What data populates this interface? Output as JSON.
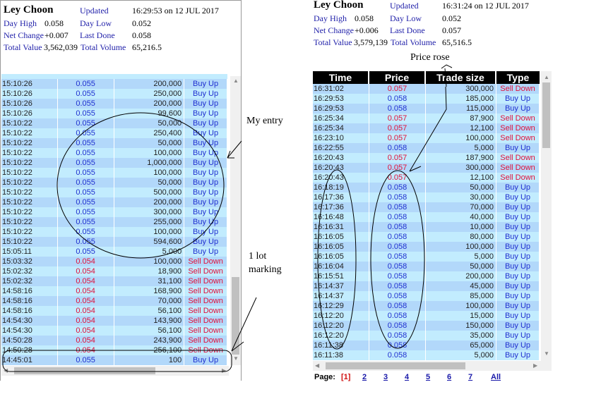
{
  "left": {
    "title": "Ley Choon",
    "updated_label": "Updated",
    "updated_value": "16:29:53 on 12 JUL 2017",
    "day_high_label": "Day High",
    "day_high": "0.058",
    "day_low_label": "Day Low",
    "day_low": "0.052",
    "net_change_label": "Net Change",
    "net_change": "+0.007",
    "last_done_label": "Last Done",
    "last_done": "0.058",
    "total_value_label": "Total Value",
    "total_value": "3,562,039",
    "total_volume_label": "Total Volume",
    "total_volume": "65,216.5",
    "rows": [
      [
        "15:10:26",
        "0.055",
        "200,000",
        "Buy Up"
      ],
      [
        "15:10:26",
        "0.055",
        "250,000",
        "Buy Up"
      ],
      [
        "15:10:26",
        "0.055",
        "200,000",
        "Buy Up"
      ],
      [
        "15:10:26",
        "0.055",
        "99,600",
        "Buy Up"
      ],
      [
        "15:10:22",
        "0.055",
        "50,000",
        "Buy Up"
      ],
      [
        "15:10:22",
        "0.055",
        "250,400",
        "Buy Up"
      ],
      [
        "15:10:22",
        "0.055",
        "50,000",
        "Buy Up"
      ],
      [
        "15:10:22",
        "0.055",
        "100,000",
        "Buy Up"
      ],
      [
        "15:10:22",
        "0.055",
        "1,000,000",
        "Buy Up"
      ],
      [
        "15:10:22",
        "0.055",
        "100,000",
        "Buy Up"
      ],
      [
        "15:10:22",
        "0.055",
        "50,000",
        "Buy Up"
      ],
      [
        "15:10:22",
        "0.055",
        "500,000",
        "Buy Up"
      ],
      [
        "15:10:22",
        "0.055",
        "200,000",
        "Buy Up"
      ],
      [
        "15:10:22",
        "0.055",
        "300,000",
        "Buy Up"
      ],
      [
        "15:10:22",
        "0.055",
        "255,000",
        "Buy Up"
      ],
      [
        "15:10:22",
        "0.055",
        "100,000",
        "Buy Up"
      ],
      [
        "15:10:22",
        "0.055",
        "594,600",
        "Buy Up"
      ],
      [
        "15:05:11",
        "0.055",
        "5,000",
        "Buy Up"
      ],
      [
        "15:03:32",
        "0.054",
        "100,000",
        "Sell Down"
      ],
      [
        "15:02:32",
        "0.054",
        "18,900",
        "Sell Down"
      ],
      [
        "15:02:32",
        "0.054",
        "31,100",
        "Sell Down"
      ],
      [
        "14:58:16",
        "0.054",
        "168,900",
        "Sell Down"
      ],
      [
        "14:58:16",
        "0.054",
        "70,000",
        "Sell Down"
      ],
      [
        "14:58:16",
        "0.054",
        "56,100",
        "Sell Down"
      ],
      [
        "14:54:30",
        "0.054",
        "143,900",
        "Sell Down"
      ],
      [
        "14:54:30",
        "0.054",
        "56,100",
        "Sell Down"
      ],
      [
        "14:50:28",
        "0.054",
        "243,900",
        "Sell Down"
      ],
      [
        "14:50:28",
        "0.054",
        "256,100",
        "Sell Down"
      ],
      [
        "14:45:01",
        "0.055",
        "100",
        "Buy Up"
      ]
    ]
  },
  "right": {
    "title": "Ley Choon",
    "updated_label": "Updated",
    "updated_value": "16:31:24 on 12 JUL 2017",
    "day_high_label": "Day High",
    "day_high": "0.058",
    "day_low_label": "Day Low",
    "day_low": "0.052",
    "net_change_label": "Net Change",
    "net_change": "+0.006",
    "last_done_label": "Last Done",
    "last_done": "0.057",
    "total_value_label": "Total Value",
    "total_value": "3,579,139",
    "total_volume_label": "Total Volume",
    "total_volume": "65,516.5",
    "columns": [
      "Time",
      "Price",
      "Trade size",
      "Type"
    ],
    "rows": [
      [
        "16:31:02",
        "0.057",
        "300,000",
        "Sell Down"
      ],
      [
        "16:29:53",
        "0.058",
        "185,000",
        "Buy Up"
      ],
      [
        "16:29:53",
        "0.058",
        "115,000",
        "Buy Up"
      ],
      [
        "16:25:34",
        "0.057",
        "87,900",
        "Sell Down"
      ],
      [
        "16:25:34",
        "0.057",
        "12,100",
        "Sell Down"
      ],
      [
        "16:23:10",
        "0.057",
        "100,000",
        "Sell Down"
      ],
      [
        "16:22:55",
        "0.058",
        "5,000",
        "Buy Up"
      ],
      [
        "16:20:43",
        "0.057",
        "187,900",
        "Sell Down"
      ],
      [
        "16:20:43",
        "0.057",
        "300,000",
        "Sell Down"
      ],
      [
        "16:20:43",
        "0.057",
        "12,100",
        "Sell Down"
      ],
      [
        "16:18:19",
        "0.058",
        "50,000",
        "Buy Up"
      ],
      [
        "16:17:36",
        "0.058",
        "30,000",
        "Buy Up"
      ],
      [
        "16:17:36",
        "0.058",
        "70,000",
        "Buy Up"
      ],
      [
        "16:16:48",
        "0.058",
        "40,000",
        "Buy Up"
      ],
      [
        "16:16:31",
        "0.058",
        "10,000",
        "Buy Up"
      ],
      [
        "16:16:05",
        "0.058",
        "80,000",
        "Buy Up"
      ],
      [
        "16:16:05",
        "0.058",
        "100,000",
        "Buy Up"
      ],
      [
        "16:16:05",
        "0.058",
        "5,000",
        "Buy Up"
      ],
      [
        "16:16:04",
        "0.058",
        "50,000",
        "Buy Up"
      ],
      [
        "16:15:51",
        "0.058",
        "200,000",
        "Buy Up"
      ],
      [
        "16:14:37",
        "0.058",
        "45,000",
        "Buy Up"
      ],
      [
        "16:14:37",
        "0.058",
        "85,000",
        "Buy Up"
      ],
      [
        "16:12:29",
        "0.058",
        "100,000",
        "Buy Up"
      ],
      [
        "16:12:20",
        "0.058",
        "15,000",
        "Buy Up"
      ],
      [
        "16:12:20",
        "0.058",
        "150,000",
        "Buy Up"
      ],
      [
        "16:12:20",
        "0.058",
        "35,000",
        "Buy Up"
      ],
      [
        "16:11:38",
        "0.058",
        "65,000",
        "Buy Up"
      ],
      [
        "16:11:38",
        "0.058",
        "5,000",
        "Buy Up"
      ]
    ],
    "pager": {
      "label": "Page:",
      "current": "[1]",
      "pages": [
        "2",
        "3",
        "4",
        "5",
        "6",
        "7",
        "All"
      ]
    }
  },
  "annotations": {
    "my_entry": "My entry",
    "one_lot": "1 lot",
    "marking": "marking",
    "price_rose": "Price rose"
  },
  "colors": {
    "buy": "#1f2fd0",
    "sell": "#e0103a",
    "row_light": "#c2ecfe",
    "row_dark": "#b2d8fa",
    "label": "#2222aa"
  }
}
